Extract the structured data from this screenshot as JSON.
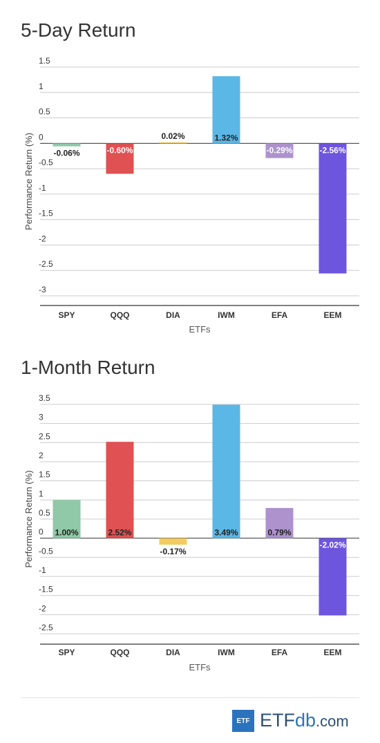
{
  "chart_data": [
    {
      "type": "bar",
      "title": "5-Day Return",
      "xlabel": "ETFs",
      "ylabel": "Performance Return (%)",
      "categories": [
        "SPY",
        "QQQ",
        "DIA",
        "IWM",
        "EFA",
        "EEM"
      ],
      "values": [
        -0.06,
        -0.6,
        0.02,
        1.32,
        -0.29,
        -2.56
      ],
      "labels": [
        "-0.06%",
        "-0.60%",
        "0.02%",
        "1.32%",
        "-0.29%",
        "-2.56%"
      ],
      "colors": [
        "#8fc9a7",
        "#df5152",
        "#f2cc5f",
        "#5bb7e6",
        "#ad92cd",
        "#6e55de"
      ],
      "ylim": [
        -3,
        1.5
      ],
      "yticks": [
        1.5,
        1,
        0.5,
        0,
        -0.5,
        -1,
        -1.5,
        -2,
        -2.5,
        -3
      ],
      "ytick_labels": [
        "1.5",
        "1",
        "0.5",
        "0",
        "-0.5",
        "-1",
        "-1.5",
        "-2",
        "-2.5",
        "-3"
      ],
      "grid": true
    },
    {
      "type": "bar",
      "title": "1-Month Return",
      "xlabel": "ETFs",
      "ylabel": "Performance Return (%)",
      "categories": [
        "SPY",
        "QQQ",
        "DIA",
        "IWM",
        "EFA",
        "EEM"
      ],
      "values": [
        1.0,
        2.52,
        -0.17,
        3.49,
        0.79,
        -2.02
      ],
      "labels": [
        "1.00%",
        "2.52%",
        "-0.17%",
        "3.49%",
        "0.79%",
        "-2.02%"
      ],
      "colors": [
        "#8fc9a7",
        "#df5152",
        "#f2cc5f",
        "#5bb7e6",
        "#ad92cd",
        "#6e55de"
      ],
      "ylim": [
        -2.75,
        3.5
      ],
      "yticks": [
        3.5,
        3,
        2.5,
        2,
        1.5,
        1,
        0.5,
        0,
        -0.5,
        -1,
        -1.5,
        -2,
        -2.5
      ],
      "ytick_labels": [
        "3.5",
        "3",
        "2.5",
        "2",
        "1.5",
        "1",
        "0.5",
        "0",
        "-0.5",
        "-1",
        "-1.5",
        "-2",
        "-2.5"
      ],
      "grid": true
    }
  ],
  "logo": {
    "box_text": "ETF",
    "text_main": "ETF",
    "text_db": "db",
    "text_com": ".com"
  }
}
